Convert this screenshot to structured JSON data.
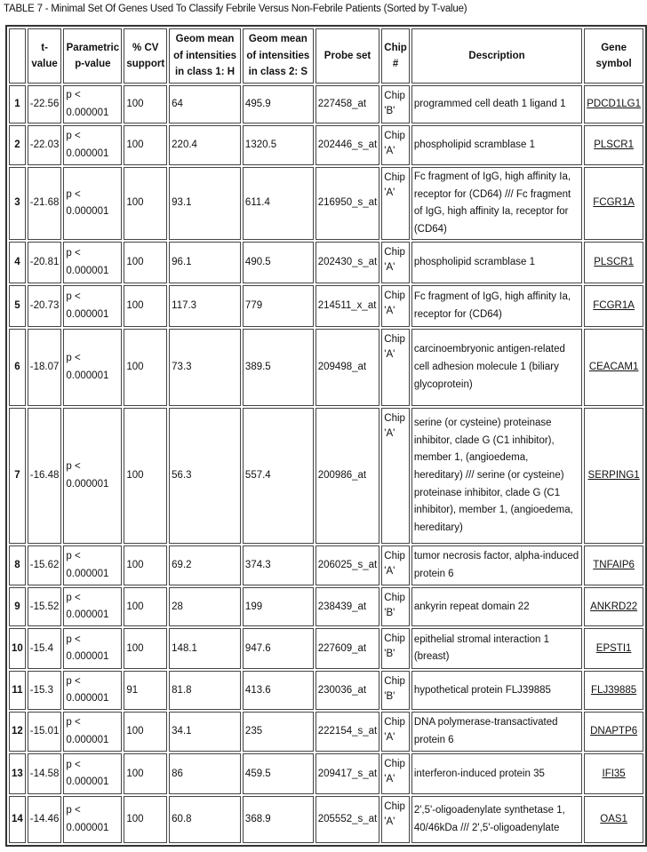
{
  "title": "TABLE 7 - Minimal Set Of Genes Used To Classify Febrile Versus Non-Febrile Patients (Sorted by T-value)",
  "headers": [
    "",
    "t-value",
    "Parametric p-value",
    "% CV support",
    "Geom mean of intensities in class 1: H",
    "Geom mean of intensities in class 2: S",
    "Probe set",
    "Chip #",
    "Description",
    "Gene symbol"
  ],
  "rows": [
    {
      "n": "1",
      "t": "-22.56",
      "p": "p < 0.000001",
      "cv": "100",
      "h": "64",
      "s": "495.9",
      "probe": "227458_at",
      "chip": "Chip 'B'",
      "desc": "programmed cell death 1 ligand 1",
      "gene": "PDCD1LG1"
    },
    {
      "n": "2",
      "t": "-22.03",
      "p": "p < 0.000001",
      "cv": "100",
      "h": "220.4",
      "s": "1320.5",
      "probe": "202446_s_at",
      "chip": "Chip 'A'",
      "desc": "phospholipid scramblase 1",
      "gene": "PLSCR1"
    },
    {
      "n": "3",
      "t": "-21.68",
      "p": "p < 0.000001",
      "cv": "100",
      "h": "93.1",
      "s": "611.4",
      "probe": "216950_s_at",
      "chip": "Chip 'A'",
      "desc": "Fc fragment of IgG, high affinity Ia, receptor for (CD64) /// Fc fragment of IgG, high affinity Ia, receptor for (CD64)",
      "gene": "FCGR1A"
    },
    {
      "n": "4",
      "t": "-20.81",
      "p": "p < 0.000001",
      "cv": "100",
      "h": "96.1",
      "s": "490.5",
      "probe": "202430_s_at",
      "chip": "Chip 'A'",
      "desc": "phospholipid scramblase 1",
      "gene": "PLSCR1"
    },
    {
      "n": "5",
      "t": "-20.73",
      "p": "p < 0.000001",
      "cv": "100",
      "h": "117.3",
      "s": "779",
      "probe": "214511_x_at",
      "chip": "Chip 'A'",
      "desc": "Fc fragment of IgG, high affinity Ia, receptor for (CD64)",
      "gene": "FCGR1A"
    },
    {
      "n": "6",
      "t": "-18.07",
      "p": "p < 0.000001",
      "cv": "100",
      "h": "73.3",
      "s": "389.5",
      "probe": "209498_at",
      "chip": "Chip 'A'",
      "desc": "carcinoembryonic antigen-related cell adhesion molecule 1 (biliary glycoprotein)",
      "gene": "CEACAM1"
    },
    {
      "n": "7",
      "t": "-16.48",
      "p": "p < 0.000001",
      "cv": "100",
      "h": "56.3",
      "s": "557.4",
      "probe": "200986_at",
      "chip": "Chip 'A'",
      "desc": "serine (or cysteine) proteinase inhibitor, clade G (C1 inhibitor), member 1, (angioedema, hereditary) /// serine (or cysteine) proteinase inhibitor, clade G (C1 inhibitor), member 1, (angioedema, hereditary)",
      "gene": "SERPING1"
    },
    {
      "n": "8",
      "t": "-15.62",
      "p": "p < 0.000001",
      "cv": "100",
      "h": "69.2",
      "s": "374.3",
      "probe": "206025_s_at",
      "chip": "Chip 'A'",
      "desc": "tumor necrosis factor, alpha-induced protein 6",
      "gene": "TNFAIP6"
    },
    {
      "n": "9",
      "t": "-15.52",
      "p": "p < 0.000001",
      "cv": "100",
      "h": "28",
      "s": "199",
      "probe": "238439_at",
      "chip": "Chip 'B'",
      "desc": "ankyrin repeat domain 22",
      "gene": "ANKRD22"
    },
    {
      "n": "10",
      "t": "-15.4",
      "p": "p < 0.000001",
      "cv": "100",
      "h": "148.1",
      "s": "947.6",
      "probe": "227609_at",
      "chip": "Chip 'B'",
      "desc": "epithelial stromal interaction 1 (breast)",
      "gene": "EPSTI1"
    },
    {
      "n": "11",
      "t": "-15.3",
      "p": "p < 0.000001",
      "cv": "91",
      "h": "81.8",
      "s": "413.6",
      "probe": "230036_at",
      "chip": "Chip 'B'",
      "desc": "hypothetical protein FLJ39885",
      "gene": "FLJ39885"
    },
    {
      "n": "12",
      "t": "-15.01",
      "p": "p < 0.000001",
      "cv": "100",
      "h": "34.1",
      "s": "235",
      "probe": "222154_s_at",
      "chip": "Chip 'A'",
      "desc": "DNA polymerase-transactivated protein 6",
      "gene": "DNAPTP6"
    },
    {
      "n": "13",
      "t": "-14.58",
      "p": "p < 0.000001",
      "cv": "100",
      "h": "86",
      "s": "459.5",
      "probe": "209417_s_at",
      "chip": "Chip 'A'",
      "desc": "interferon-induced protein 35",
      "gene": "IFI35"
    },
    {
      "n": "14",
      "t": "-14.46",
      "p": "p < 0.000001",
      "cv": "100",
      "h": "60.8",
      "s": "368.9",
      "probe": "205552_s_at",
      "chip": "Chip 'A'",
      "desc": "2',5'-oligoadenylate synthetase 1, 40/46kDa /// 2',5'-oligoadenylate",
      "gene": "OAS1"
    }
  ]
}
